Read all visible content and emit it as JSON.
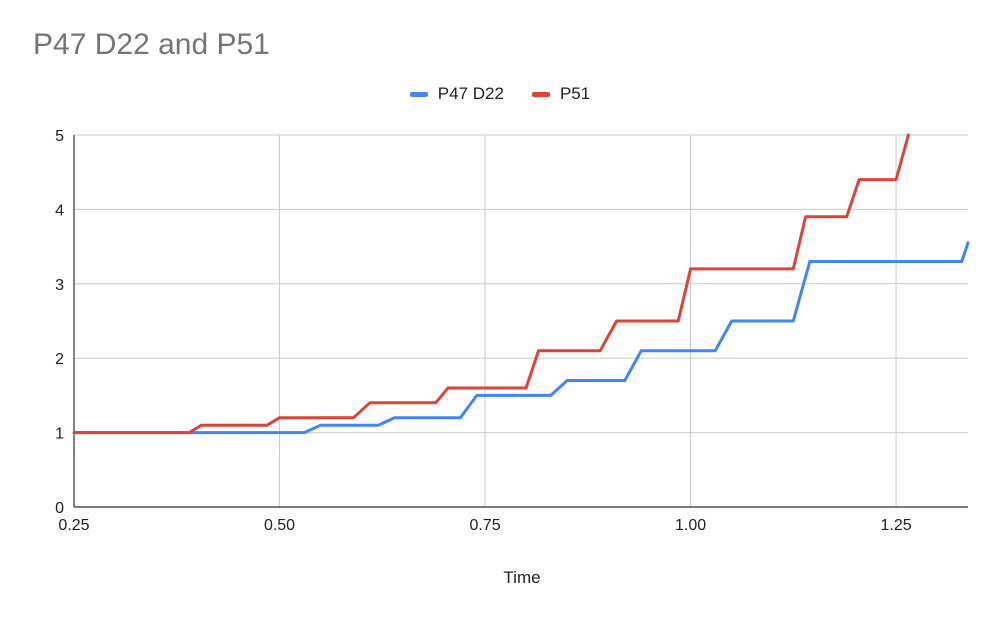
{
  "chart_data": {
    "type": "line",
    "title": "P47 D22 and P51",
    "xlabel": "Time",
    "ylabel": "",
    "xlim": [
      0.25,
      1.3375
    ],
    "ylim": [
      0,
      5
    ],
    "x_ticks": [
      "0.25",
      "0.50",
      "0.75",
      "1.00",
      "1.25"
    ],
    "x_tick_values": [
      0.25,
      0.5,
      0.75,
      1.0,
      1.25
    ],
    "y_ticks": [
      "0",
      "1",
      "2",
      "3",
      "4",
      "5"
    ],
    "y_tick_values": [
      0,
      1,
      2,
      3,
      4,
      5
    ],
    "grid": true,
    "legend_position": "top-center",
    "series": [
      {
        "name": "P47 D22",
        "color": "#4285f4",
        "x": [
          0.25,
          0.53,
          0.55,
          0.62,
          0.64,
          0.72,
          0.74,
          0.83,
          0.85,
          0.92,
          0.94,
          1.03,
          1.05,
          1.125,
          1.145,
          1.33,
          1.3375
        ],
        "y": [
          1.0,
          1.0,
          1.1,
          1.1,
          1.2,
          1.2,
          1.5,
          1.5,
          1.7,
          1.7,
          2.1,
          2.1,
          2.5,
          2.5,
          3.3,
          3.3,
          3.55
        ]
      },
      {
        "name": "P51",
        "color": "#db4437",
        "x": [
          0.25,
          0.39,
          0.405,
          0.485,
          0.5,
          0.59,
          0.61,
          0.69,
          0.705,
          0.8,
          0.815,
          0.89,
          0.91,
          0.985,
          1.0,
          1.125,
          1.14,
          1.19,
          1.205,
          1.25,
          1.265
        ],
        "y": [
          1.0,
          1.0,
          1.1,
          1.1,
          1.2,
          1.2,
          1.4,
          1.4,
          1.6,
          1.6,
          2.1,
          2.1,
          2.5,
          2.5,
          3.2,
          3.2,
          3.9,
          3.9,
          4.4,
          4.4,
          5.0
        ]
      }
    ]
  }
}
